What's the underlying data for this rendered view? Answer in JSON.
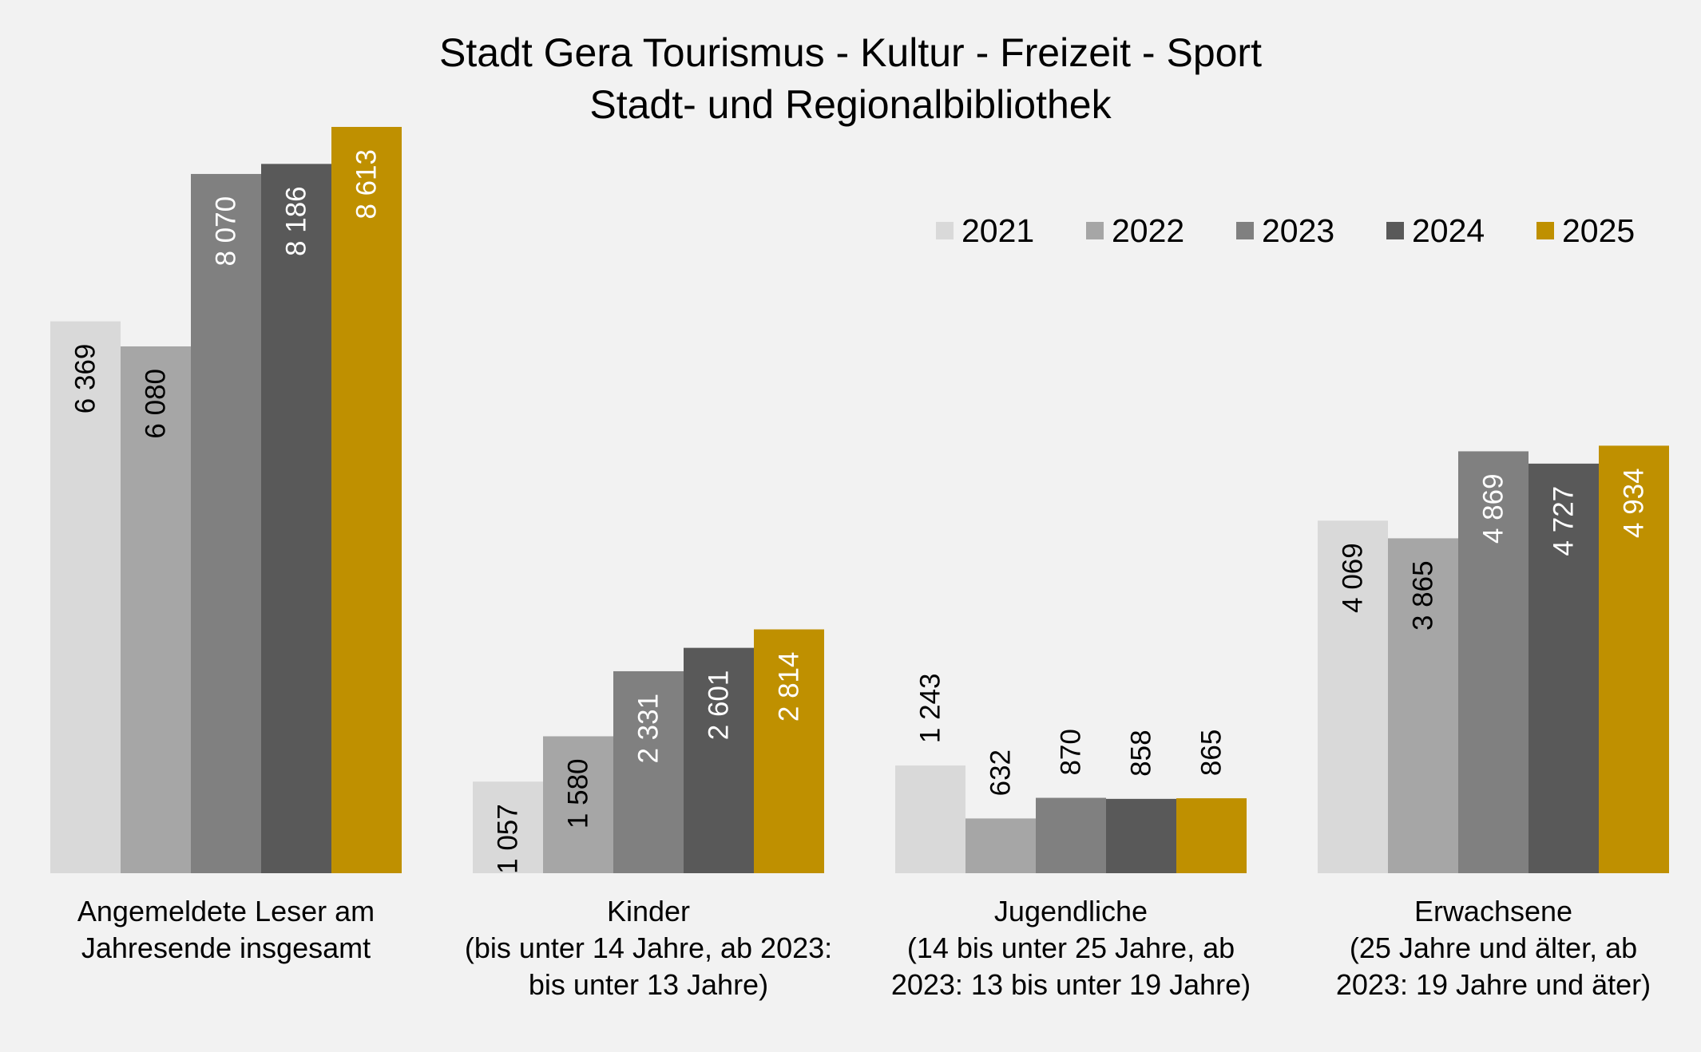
{
  "chart_data": {
    "type": "bar",
    "title": [
      "Stadt Gera Tourismus - Kultur - Freizeit - Sport",
      "Stadt- und Regionalbibliothek"
    ],
    "categories": [
      [
        "Angemeldete Leser am",
        "Jahresende insgesamt"
      ],
      [
        "Kinder",
        "(bis unter 14 Jahre, ab 2023:",
        "bis unter 13 Jahre)"
      ],
      [
        "Jugendliche",
        "(14 bis unter 25 Jahre, ab",
        "2023: 13 bis unter 19 Jahre)"
      ],
      [
        "Erwachsene",
        "(25 Jahre und älter, ab",
        "2023: 19 Jahre und äter)"
      ]
    ],
    "series": [
      {
        "name": "2021",
        "color": "#d9d9d9",
        "values": [
          6369,
          1057,
          1243,
          4069
        ],
        "labels": [
          "6 369",
          "1 057",
          "1 243",
          "4 069"
        ]
      },
      {
        "name": "2022",
        "color": "#a6a6a6",
        "values": [
          6080,
          1580,
          632,
          3865
        ],
        "labels": [
          "6 080",
          "1 580",
          "632",
          "3 865"
        ]
      },
      {
        "name": "2023",
        "color": "#808080",
        "values": [
          8070,
          2331,
          870,
          4869
        ],
        "labels": [
          "8 070",
          "2 331",
          "870",
          "4 869"
        ]
      },
      {
        "name": "2024",
        "color": "#595959",
        "values": [
          8186,
          2601,
          858,
          4727
        ],
        "labels": [
          "8 186",
          "2 601",
          "858",
          "4 727"
        ]
      },
      {
        "name": "2025",
        "color": "#bf9000",
        "values": [
          8613,
          2814,
          865,
          4934
        ],
        "labels": [
          "8 613",
          "2 814",
          "865",
          "4 934"
        ]
      }
    ],
    "ylim": [
      0,
      8613
    ],
    "grid": false,
    "legend_position": "top-right",
    "xlabel": "",
    "ylabel": ""
  }
}
